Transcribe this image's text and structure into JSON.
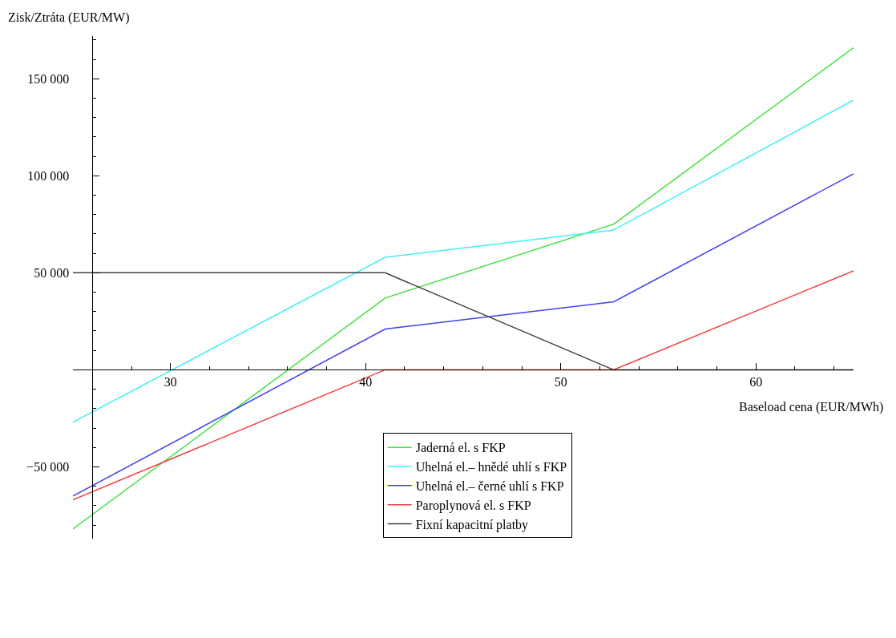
{
  "chart_data": {
    "type": "line",
    "xlabel": "Baseload cena (EUR/MWh)",
    "ylabel": "Zisk/Ztráta (EUR/MW)",
    "xlim": [
      25,
      65
    ],
    "ylim": [
      -87000,
      172000
    ],
    "xticks": [
      30,
      40,
      50,
      60
    ],
    "yticks": [
      {
        "value": -50000,
        "label": "−50 000"
      },
      {
        "value": 50000,
        "label": "50 000"
      },
      {
        "value": 100000,
        "label": "100 000"
      },
      {
        "value": 150000,
        "label": "150 000"
      }
    ],
    "grid": false,
    "legend": "bottom right",
    "marker": "none",
    "line_style": "solid",
    "x": [
      25,
      41,
      52.7,
      65
    ],
    "series": [
      {
        "name": "Jaderná el. s FKP",
        "color": "#40e040",
        "values": [
          -82000,
          37000,
          75000,
          166000
        ]
      },
      {
        "name": "Uhelná el.– hnědé uhlí s FKP",
        "color": "#40f0f0",
        "values": [
          -27000,
          58000,
          72000,
          139000
        ]
      },
      {
        "name": "Uhelná el.– černé uhlí s FKP",
        "color": "#4040f0",
        "values": [
          -65000,
          21000,
          35000,
          101000
        ]
      },
      {
        "name": "Paroplynová el. s FKP",
        "color": "#f04040",
        "values": [
          -67000,
          0,
          0,
          51000
        ]
      },
      {
        "name": "Fixní kapacitní platby",
        "color": "#404040",
        "values": [
          50000,
          50000,
          0,
          0
        ]
      }
    ]
  }
}
